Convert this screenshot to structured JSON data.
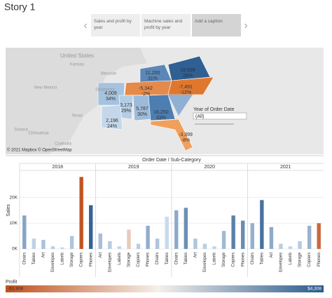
{
  "title": "Story 1",
  "nav": {
    "points": [
      "Sales and profit by year",
      "Machine sales and profit by year",
      "Add a caption"
    ]
  },
  "map": {
    "places": [
      "United States",
      "Kansas",
      "Oklahoma",
      "Texas",
      "New Mexico",
      "Sonora",
      "Chihuahua",
      "Coahuila",
      "Missouri"
    ],
    "states": [
      {
        "sales": "11,200",
        "ratio": "31%",
        "color": "#5a87b8"
      },
      {
        "sales": "18,598",
        "ratio": "26%",
        "color": "#2f5f93"
      },
      {
        "sales": "-5,342",
        "ratio": "-2%",
        "color": "#e48a4a"
      },
      {
        "sales": "-7,491",
        "ratio": "-12%",
        "color": "#e0772f"
      },
      {
        "sales": "4,009",
        "ratio": "34%",
        "color": "#a6c2de"
      },
      {
        "sales": "3,173",
        "ratio": "29%",
        "color": "#b5cde4"
      },
      {
        "sales": "5,787",
        "ratio": "30%",
        "color": "#9dbbd9"
      },
      {
        "sales": "16,250",
        "ratio": "33%",
        "color": "#4d7eb1"
      },
      {
        "sales": "2,196",
        "ratio": "24%",
        "color": "#c4d7ea"
      },
      {
        "sales": "-3,399",
        "ratio": "-8%",
        "color": "#f0a05c"
      }
    ],
    "credit": "© 2021 Mapbox © OpenStreetMap"
  },
  "filter": {
    "label": "Year of Order Date",
    "value": "(All)"
  },
  "chart_data": {
    "type": "bar",
    "header": "Order Date / Sub-Category",
    "y_label": "Sales",
    "years": [
      "2018",
      "2019",
      "2020",
      "2021"
    ],
    "categories": [
      "Chairs",
      "Tables",
      "Art",
      "Envelopes",
      "Labels",
      "Storage",
      "Copiers",
      "Phones",
      "Art",
      "Envelopes",
      "Labels",
      "Storage",
      "Copiers",
      "Phones",
      "Chairs",
      "Tables",
      "Chairs",
      "Tables",
      "Art",
      "Envelopes",
      "Labels",
      "Storage",
      "Copiers",
      "Phones",
      "Chairs",
      "Tables",
      "Art",
      "Envelopes",
      "Labels",
      "Storage",
      "Copiers",
      "Phones"
    ],
    "values": [
      13000,
      4000,
      3500,
      1000,
      600,
      5000,
      28000,
      17000,
      6000,
      3000,
      1000,
      7500,
      2000,
      9000,
      4000,
      12500,
      15000,
      16000,
      4000,
      2000,
      1000,
      7000,
      13000,
      11000,
      10000,
      19000,
      8500,
      2000,
      1000,
      3000,
      9000,
      10000
    ],
    "profit": [
      1800,
      300,
      800,
      400,
      200,
      700,
      -3800,
      4000,
      900,
      500,
      200,
      -900,
      400,
      1500,
      700,
      0,
      1600,
      2500,
      700,
      400,
      200,
      1100,
      3000,
      2600,
      1400,
      3500,
      1600,
      400,
      200,
      500,
      1300,
      -3300
    ],
    "ylim": [
      0,
      30000
    ],
    "yticks": [
      {
        "value": 0,
        "label": "0K"
      },
      {
        "value": 10000,
        "label": "10K"
      },
      {
        "value": 20000,
        "label": "20K"
      }
    ],
    "legend": {
      "title": "Profit",
      "ticks": [
        {
          "value": -3908,
          "label": "-$3,908"
        },
        {
          "value": 4308,
          "label": "$4,308"
        }
      ]
    }
  }
}
